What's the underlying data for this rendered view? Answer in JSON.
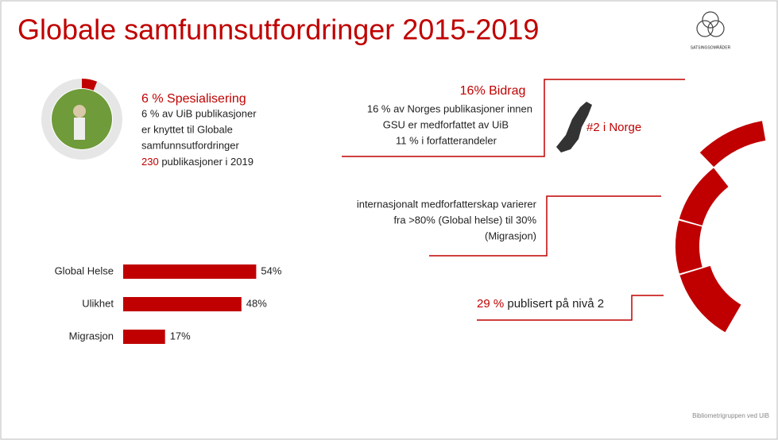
{
  "title": "Globale samfunnsutfordringer 2015-2019",
  "logo_text": "SATSINGSOMRÅDER",
  "spesialisering": {
    "heading": "6 % Spesialisering",
    "lines": [
      "6 % av UiB publikasjoner",
      "er knyttet til Globale",
      "samfunnsutfordringer"
    ],
    "count": "230",
    "count_suffix": " publikasjoner i 2019"
  },
  "bidrag": {
    "heading": "16% Bidrag",
    "lines": [
      "16 % av Norges publikasjoner innen",
      "GSU er medforfattet av UiB",
      "11 % i forfatterandeler"
    ],
    "rank": "#2 i Norge"
  },
  "internasjonalt": {
    "lines": [
      "internasjonalt medforfatterskap varierer",
      "fra  >80% (Global helse)  til 30%",
      "(Migrasjon)"
    ]
  },
  "niva": {
    "percent": "29 %",
    "text": " publisert på nivå 2"
  },
  "bars": {
    "categories": [
      "Global Helse",
      "Ulikhet",
      "Migrasjon"
    ],
    "values": [
      54,
      48,
      17
    ],
    "value_labels": [
      "54%",
      "48%",
      "17%"
    ],
    "color": "#c00000"
  },
  "footer": "Bibliometrigruppen ved UiB"
}
